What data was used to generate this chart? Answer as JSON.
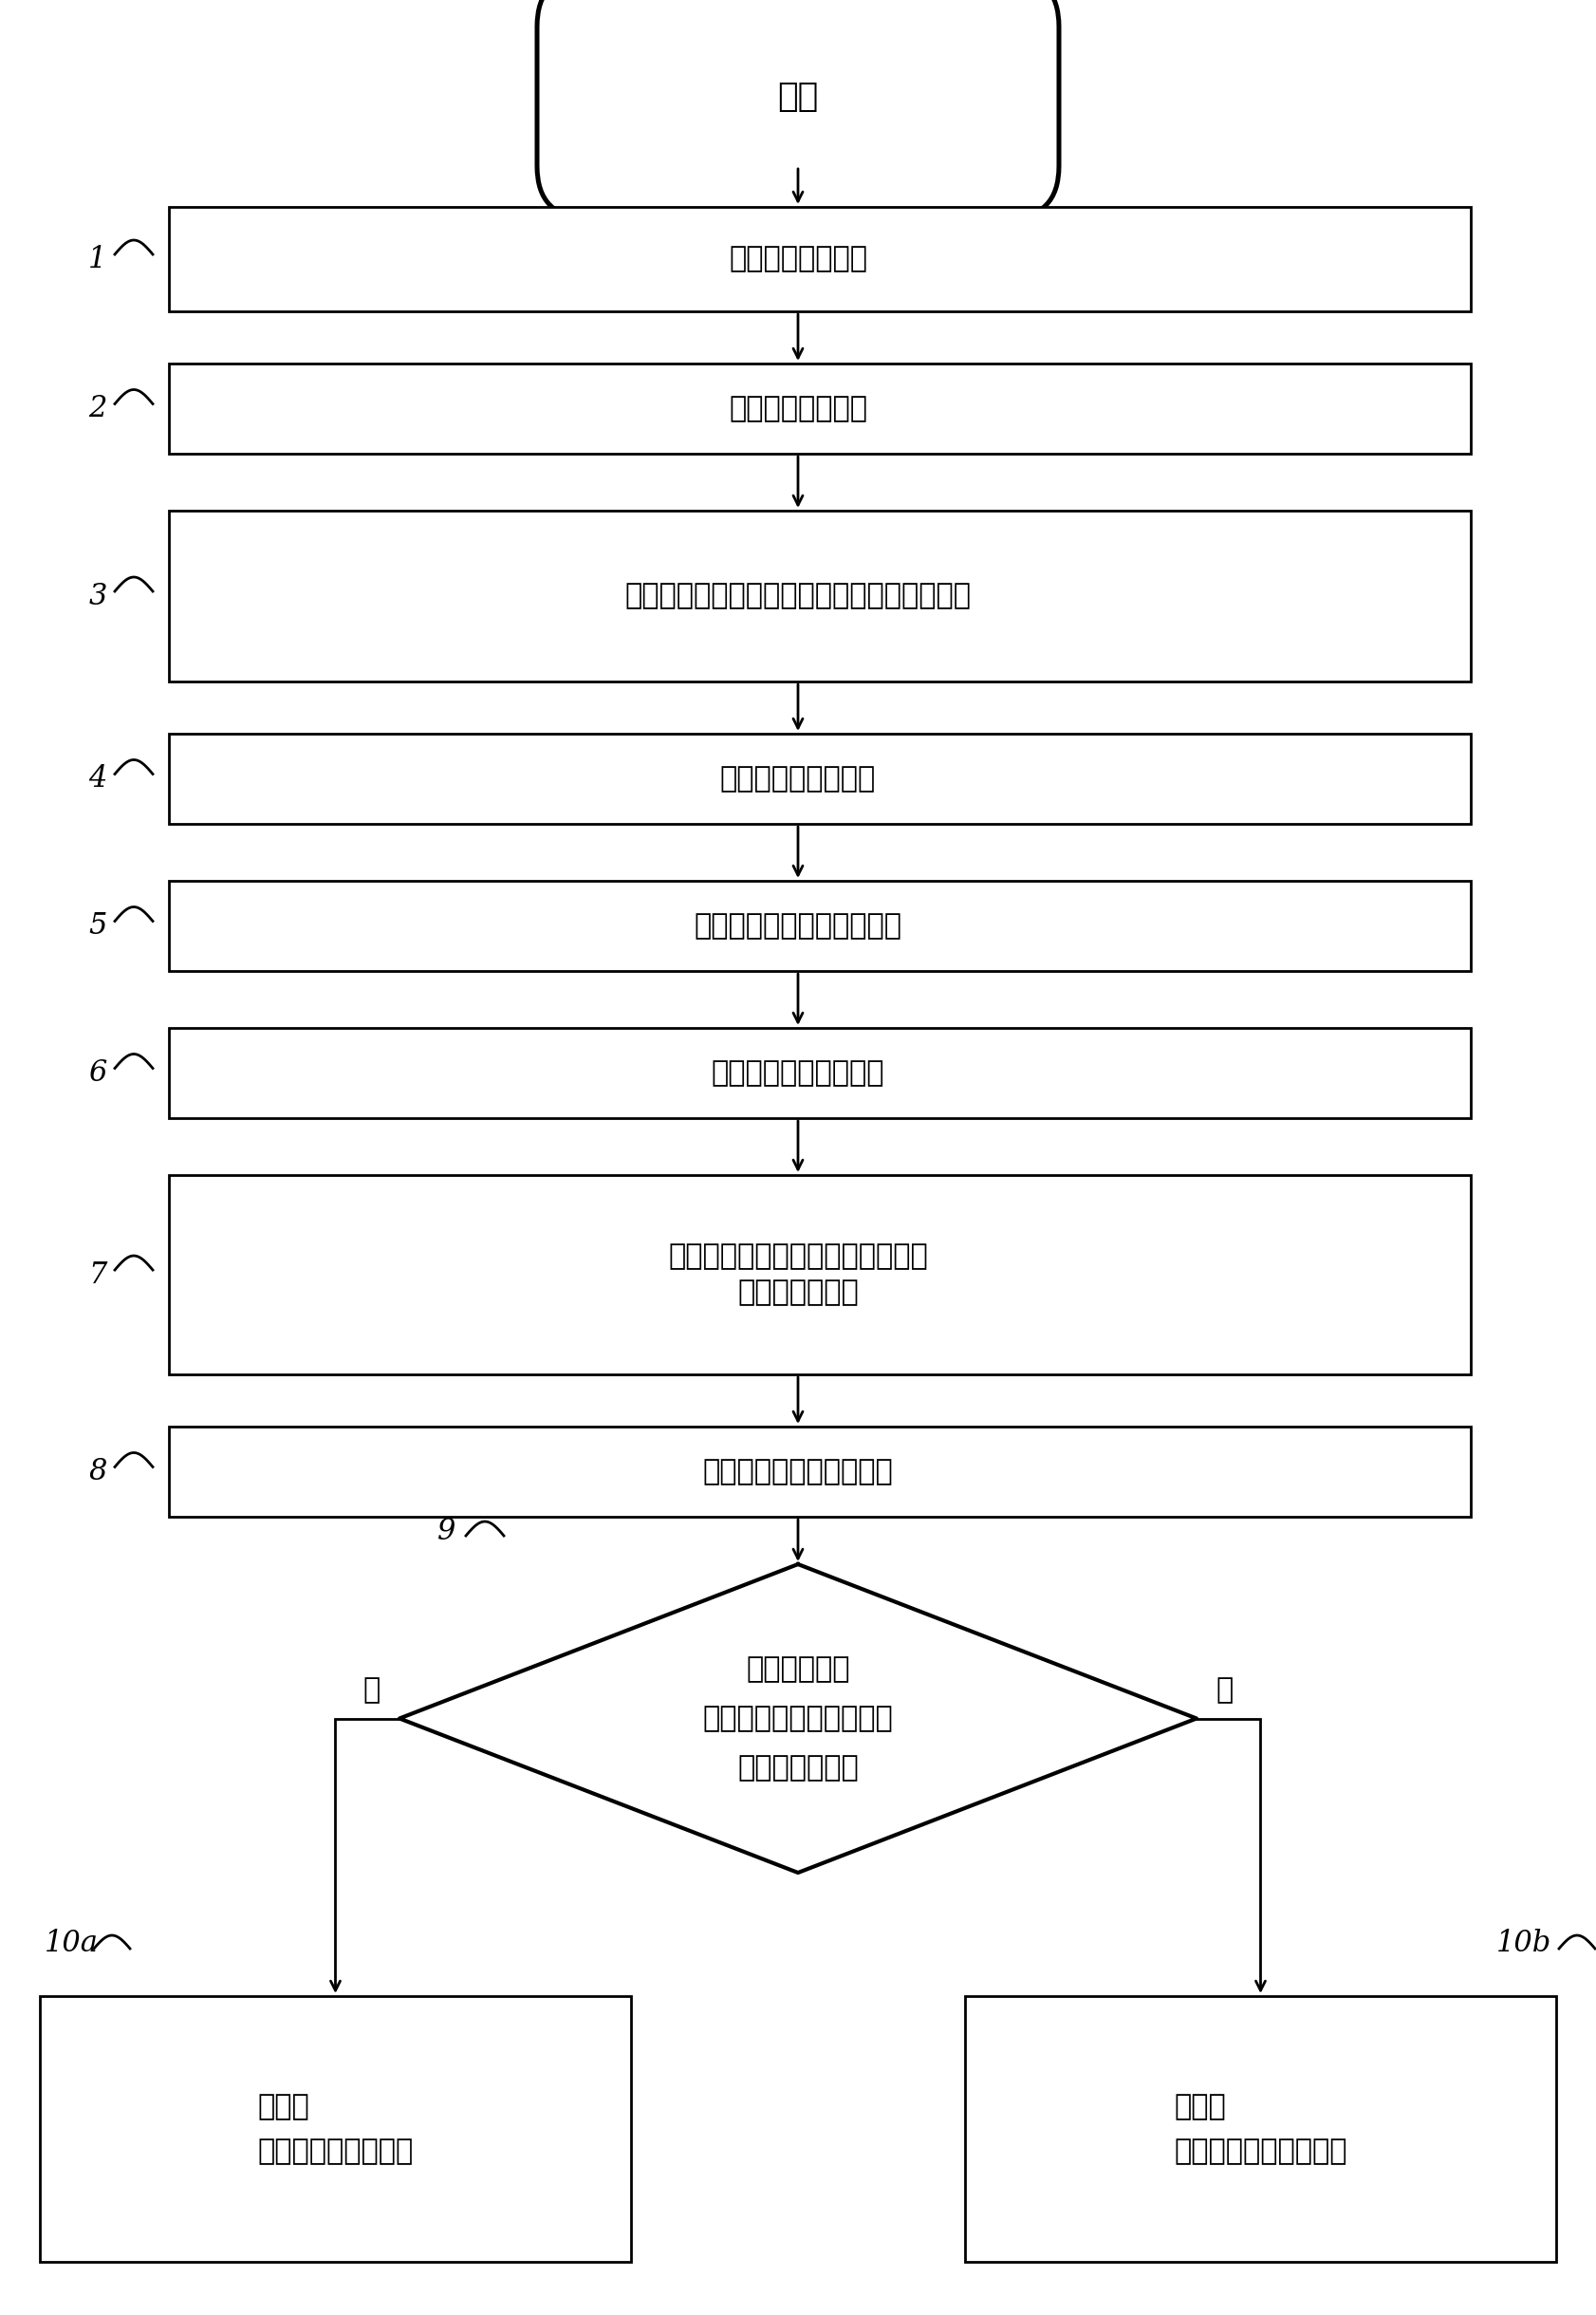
{
  "bg_color": "#ffffff",
  "fig_width": 16.82,
  "fig_height": 24.39,
  "start_label": "开始",
  "steps": [
    {
      "id": "1",
      "text": "由水制备基础溶液"
    },
    {
      "id": "2",
      "text": "由水制备参比溶液"
    },
    {
      "id": "3",
      "text": "通过将溶剂加入到基础溶液中而制备洗涤溶液"
    },
    {
      "id": "4",
      "text": "用洗涤溶液填充部件"
    },
    {
      "id": "5",
      "text": "用洗涤溶液润湿部件的表面"
    },
    {
      "id": "6",
      "text": "从部件中排出洗涤溶液"
    },
    {
      "id": "7",
      "text": "通过将洗涤溶液加入到基础溶液中\n而制备试验溶液"
    },
    {
      "id": "8",
      "text": "比较试验溶液和参比溶液"
    }
  ],
  "diamond_text_lines": [
    "在洗涤溶液与",
    "基础溶液之间的混合区中",
    "是否出现混激？"
  ],
  "diamond_id": "9",
  "yes_label": "是",
  "no_label": "否",
  "box_yes_id": "10a",
  "box_yes_lines": [
    "证据：",
    "在部件上存在润滑剂"
  ],
  "box_no_id": "10b",
  "box_no_lines": [
    "证据：",
    "在部件上不存在润滑剂"
  ],
  "line_color": "#000000",
  "text_color": "#000000",
  "lw": 2.0,
  "font_size_main": 22,
  "font_size_label": 22,
  "font_size_start": 26
}
